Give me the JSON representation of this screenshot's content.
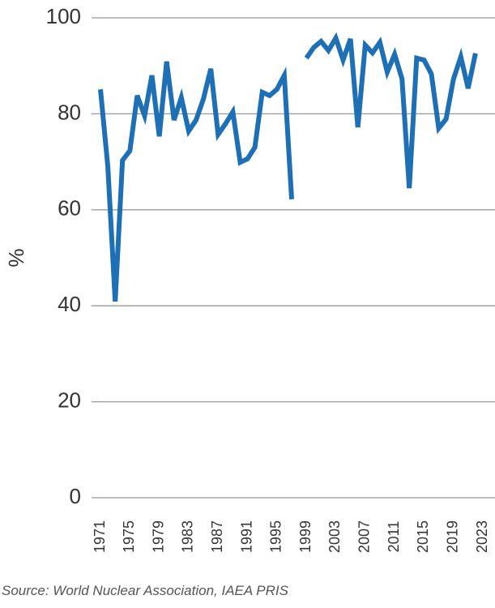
{
  "chart_data": {
    "type": "line",
    "y_label": "%",
    "source": "Source: World Nuclear Association, IAEA PRIS",
    "x": [
      1971,
      1972,
      1973,
      1974,
      1975,
      1976,
      1977,
      1978,
      1979,
      1980,
      1981,
      1982,
      1983,
      1984,
      1985,
      1986,
      1987,
      1988,
      1989,
      1990,
      1991,
      1992,
      1993,
      1994,
      1995,
      1996,
      1997,
      1998,
      1999,
      2000,
      2001,
      2002,
      2003,
      2004,
      2005,
      2006,
      2007,
      2008,
      2009,
      2010,
      2011,
      2012,
      2013,
      2014,
      2015,
      2016,
      2017,
      2018,
      2019,
      2020,
      2021,
      2022
    ],
    "values": [
      85.1,
      69,
      40.9,
      70.3,
      72.3,
      83.8,
      79.6,
      88,
      75.3,
      90.9,
      78.7,
      83.4,
      76.4,
      78.7,
      83.1,
      89.4,
      75.7,
      77.9,
      80.4,
      69.9,
      70.6,
      73,
      84.5,
      83.8,
      85.1,
      88,
      62.2,
      null,
      91.6,
      93.8,
      95.1,
      93.2,
      95.8,
      91.2,
      95.6,
      77.2,
      94.3,
      92.7,
      94.9,
      88.7,
      92.4,
      87.3,
      64.5,
      91.6,
      91.2,
      88.3,
      77,
      78.9,
      87.2,
      91.9,
      85.3,
      92.6
    ],
    "color": "#1f6fb5",
    "xlim": [
      1971,
      2023
    ],
    "xticks": [
      1971,
      1975,
      1979,
      1983,
      1987,
      1991,
      1995,
      1999,
      2003,
      2007,
      2011,
      2015,
      2019,
      2023
    ],
    "ylim": [
      0,
      100
    ],
    "yticks": [
      0,
      20,
      40,
      60,
      80,
      100
    ],
    "grid": true
  }
}
